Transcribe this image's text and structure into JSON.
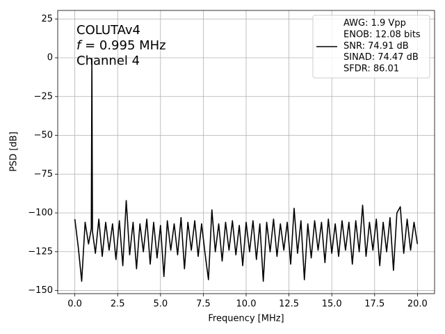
{
  "chart_data": {
    "type": "line",
    "annotations": [
      "COLUTAv4",
      "f = 0.995 MHz",
      "Channel 4"
    ],
    "xlabel": "Frequency [MHz]",
    "ylabel": "PSD [dB]",
    "xlim": [
      -1,
      21
    ],
    "ylim": [
      -152,
      30.5
    ],
    "xticks": [
      {
        "value": 0,
        "label": "0.0"
      },
      2.5,
      {
        "value": 5,
        "label": "5.0"
      },
      7.5,
      {
        "value": 10,
        "label": "10.0"
      },
      12.5,
      {
        "value": 15,
        "label": "15.0"
      },
      17.5,
      {
        "value": 20,
        "label": "20.0"
      }
    ],
    "yticks": [
      {
        "value": -150,
        "label": "−150"
      },
      {
        "value": -125,
        "label": "−125"
      },
      {
        "value": -100,
        "label": "−100"
      },
      {
        "value": -75,
        "label": "−75"
      },
      {
        "value": -50,
        "label": "−50"
      },
      {
        "value": -25,
        "label": "−25"
      },
      0,
      25
    ],
    "grid": true,
    "legend": "upper right",
    "x": [
      0.0,
      0.2,
      0.4,
      0.6,
      0.8,
      0.96,
      0.995,
      1.03,
      1.2,
      1.4,
      1.6,
      1.8,
      2.0,
      2.2,
      2.4,
      2.6,
      2.8,
      3.0,
      3.2,
      3.4,
      3.6,
      3.8,
      4.0,
      4.2,
      4.4,
      4.6,
      4.8,
      5.0,
      5.2,
      5.4,
      5.6,
      5.8,
      6.0,
      6.2,
      6.4,
      6.6,
      6.8,
      7.0,
      7.2,
      7.4,
      7.6,
      7.8,
      8.0,
      8.2,
      8.4,
      8.6,
      8.8,
      9.0,
      9.2,
      9.4,
      9.6,
      9.8,
      10.0,
      10.2,
      10.4,
      10.6,
      10.8,
      11.0,
      11.2,
      11.4,
      11.6,
      11.8,
      12.0,
      12.2,
      12.4,
      12.6,
      12.8,
      13.0,
      13.2,
      13.4,
      13.6,
      13.8,
      14.0,
      14.2,
      14.4,
      14.6,
      14.8,
      15.0,
      15.2,
      15.4,
      15.6,
      15.8,
      16.0,
      16.2,
      16.4,
      16.6,
      16.8,
      17.0,
      17.2,
      17.4,
      17.6,
      17.8,
      18.0,
      18.2,
      18.4,
      18.6,
      18.8,
      19.0,
      19.2,
      19.4,
      19.6,
      19.8,
      20.0
    ],
    "series": [
      {
        "name": "AWG: 1.9 Vpp\nENOB: 12.08 bits\nSNR: 74.91 dB\nSINAD: 74.47 dB\nSFDR: 86.01",
        "color": "#000000",
        "values": [
          -104,
          -122,
          -144,
          -106,
          -120,
          -110,
          -0.5,
          -112,
          -126,
          -104,
          -128,
          -106,
          -124,
          -107,
          -130,
          -105,
          -134,
          -92,
          -127,
          -106,
          -136,
          -107,
          -125,
          -104,
          -133,
          -106,
          -129,
          -108,
          -141,
          -105,
          -124,
          -107,
          -127,
          -103,
          -136,
          -106,
          -124,
          -105,
          -128,
          -107,
          -126,
          -143,
          -98,
          -125,
          -107,
          -131,
          -106,
          -124,
          -105,
          -127,
          -108,
          -134,
          -106,
          -125,
          -105,
          -130,
          -107,
          -144,
          -106,
          -125,
          -104,
          -128,
          -107,
          -124,
          -106,
          -133,
          -97,
          -126,
          -105,
          -143,
          -107,
          -129,
          -105,
          -124,
          -106,
          -132,
          -104,
          -126,
          -107,
          -128,
          -105,
          -124,
          -106,
          -133,
          -105,
          -125,
          -95,
          -128,
          -106,
          -124,
          -104,
          -134,
          -106,
          -125,
          -103,
          -137,
          -100,
          -96,
          -126,
          -104,
          -124,
          -106,
          -120
        ]
      }
    ]
  }
}
